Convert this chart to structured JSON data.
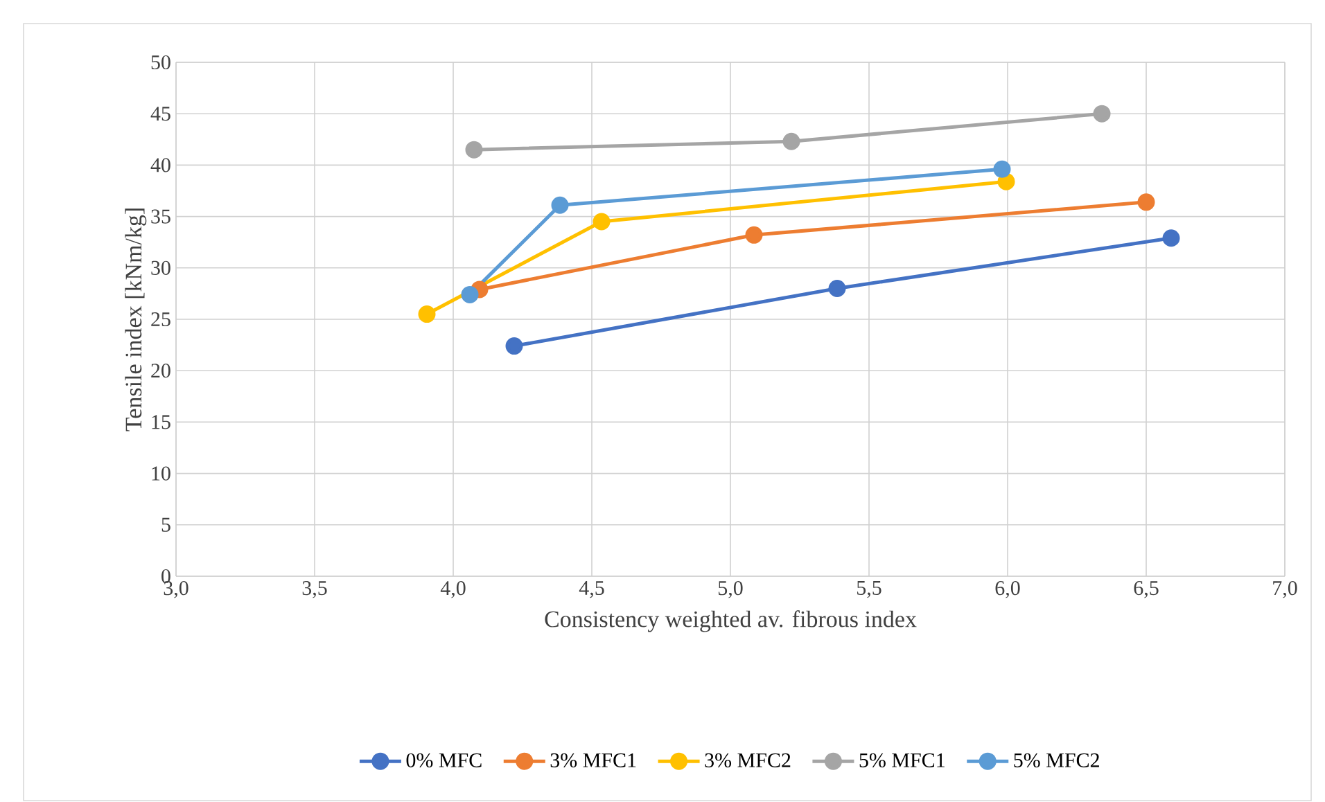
{
  "chart_data": {
    "type": "line",
    "xlabel": "Consistency weighted av. fibrous index",
    "ylabel": "Tensile index [kNm/kg]",
    "series": [
      {
        "name": "0% MFC",
        "color": "#4472c4",
        "x": [
          4.22,
          5.385,
          6.59
        ],
        "values": [
          22.4,
          28.0,
          32.9
        ]
      },
      {
        "name": "3% MFC1",
        "color": "#ed7d31",
        "x": [
          4.095,
          5.085,
          6.5
        ],
        "values": [
          27.9,
          33.2,
          36.4
        ]
      },
      {
        "name": "3% MFC2",
        "color": "#ffc000",
        "x": [
          3.905,
          4.535,
          5.995
        ],
        "values": [
          25.5,
          34.5,
          38.4
        ]
      },
      {
        "name": "5% MFC1",
        "color": "#a5a5a5",
        "x": [
          4.075,
          5.22,
          6.34
        ],
        "values": [
          41.5,
          42.3,
          45.0
        ]
      },
      {
        "name": "5% MFC2",
        "color": "#5b9bd5",
        "x": [
          4.06,
          4.385,
          5.98
        ],
        "values": [
          27.4,
          36.1,
          39.6
        ]
      }
    ],
    "xlim": [
      3,
      7
    ],
    "xticks": [
      {
        "value": 3,
        "label": "3,0"
      },
      {
        "value": 3.5,
        "label": "3,5"
      },
      {
        "value": 4,
        "label": "4,0"
      },
      {
        "value": 4.5,
        "label": "4,5"
      },
      {
        "value": 5,
        "label": "5,0"
      },
      {
        "value": 5.5,
        "label": "5,5"
      },
      {
        "value": 6,
        "label": "6,0"
      },
      {
        "value": 6.5,
        "label": "6,5"
      },
      {
        "value": 7,
        "label": "7,0"
      }
    ],
    "ylim": [
      0,
      50
    ],
    "yticks": [
      0,
      5,
      10,
      15,
      20,
      25,
      30,
      35,
      40,
      45,
      50
    ],
    "grid": true,
    "legend": "bottom",
    "marker": "circle",
    "line_style": "solid"
  }
}
